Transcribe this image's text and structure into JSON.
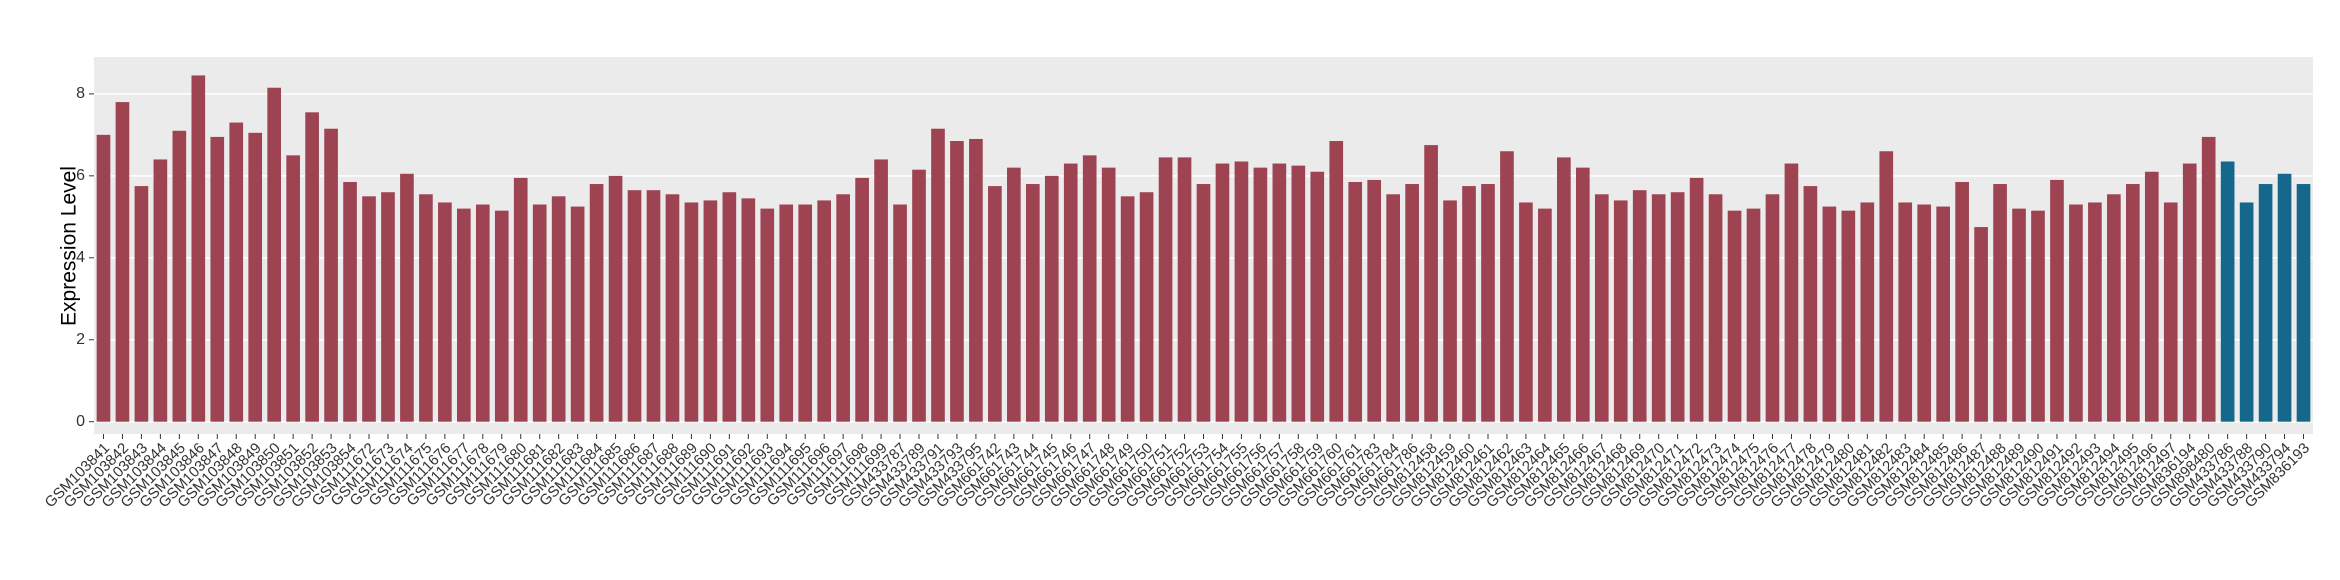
{
  "chart_data": {
    "type": "bar",
    "y_label": "Expression Level",
    "categories": [
      "GSM103841",
      "GSM103842",
      "GSM103843",
      "GSM103844",
      "GSM103845",
      "GSM103846",
      "GSM103847",
      "GSM103848",
      "GSM103849",
      "GSM103850",
      "GSM103851",
      "GSM103852",
      "GSM103853",
      "GSM103854",
      "GSM111672",
      "GSM111673",
      "GSM111674",
      "GSM111675",
      "GSM111676",
      "GSM111677",
      "GSM111678",
      "GSM111679",
      "GSM111680",
      "GSM111681",
      "GSM111682",
      "GSM111683",
      "GSM111684",
      "GSM111685",
      "GSM111686",
      "GSM111687",
      "GSM111688",
      "GSM111689",
      "GSM111690",
      "GSM111691",
      "GSM111692",
      "GSM111693",
      "GSM111694",
      "GSM111695",
      "GSM111696",
      "GSM111697",
      "GSM111698",
      "GSM111699",
      "GSM433787",
      "GSM433789",
      "GSM433791",
      "GSM433793",
      "GSM433795",
      "GSM661742",
      "GSM661743",
      "GSM661744",
      "GSM661745",
      "GSM661746",
      "GSM661747",
      "GSM661748",
      "GSM661749",
      "GSM661750",
      "GSM661751",
      "GSM661752",
      "GSM661753",
      "GSM661754",
      "GSM661755",
      "GSM661756",
      "GSM661757",
      "GSM661758",
      "GSM661759",
      "GSM661760",
      "GSM661761",
      "GSM661783",
      "GSM661784",
      "GSM661786",
      "GSM812458",
      "GSM812459",
      "GSM812460",
      "GSM812461",
      "GSM812462",
      "GSM812463",
      "GSM812464",
      "GSM812465",
      "GSM812466",
      "GSM812467",
      "GSM812468",
      "GSM812469",
      "GSM812470",
      "GSM812471",
      "GSM812472",
      "GSM812473",
      "GSM812474",
      "GSM812475",
      "GSM812476",
      "GSM812477",
      "GSM812478",
      "GSM812479",
      "GSM812480",
      "GSM812481",
      "GSM812482",
      "GSM812483",
      "GSM812484",
      "GSM812485",
      "GSM812486",
      "GSM812487",
      "GSM812488",
      "GSM812489",
      "GSM812490",
      "GSM812491",
      "GSM812492",
      "GSM812493",
      "GSM812494",
      "GSM812495",
      "GSM812496",
      "GSM812497",
      "GSM836194",
      "GSM898480",
      "GSM433786",
      "GSM433788",
      "GSM433790",
      "GSM433794",
      "GSM836193"
    ],
    "values": [
      7.0,
      7.8,
      5.75,
      6.4,
      7.1,
      8.45,
      6.95,
      7.3,
      7.05,
      8.15,
      6.5,
      7.55,
      7.15,
      5.85,
      5.5,
      5.6,
      6.05,
      5.55,
      5.35,
      5.2,
      5.3,
      5.15,
      5.95,
      5.3,
      5.5,
      5.25,
      5.8,
      6.0,
      5.65,
      5.65,
      5.55,
      5.35,
      5.4,
      5.6,
      5.45,
      5.2,
      5.3,
      5.3,
      5.4,
      5.55,
      5.95,
      6.4,
      5.3,
      6.15,
      7.15,
      6.85,
      6.9,
      5.75,
      6.2,
      5.8,
      6.0,
      6.3,
      6.5,
      6.2,
      5.5,
      5.6,
      6.45,
      6.45,
      5.8,
      6.3,
      6.35,
      6.2,
      6.3,
      6.25,
      6.1,
      6.85,
      5.85,
      5.9,
      5.55,
      5.8,
      6.75,
      5.4,
      5.75,
      5.8,
      6.6,
      5.35,
      5.2,
      6.45,
      6.2,
      5.55,
      5.4,
      5.65,
      5.55,
      5.6,
      5.95,
      5.55,
      5.15,
      5.2,
      5.55,
      6.3,
      5.75,
      5.25,
      5.15,
      5.35,
      6.6,
      5.35,
      5.3,
      5.25,
      5.85,
      4.75,
      5.8,
      5.2,
      5.15,
      5.9,
      5.3,
      5.35,
      5.55,
      5.8,
      6.1,
      5.35,
      6.3,
      6.95,
      6.35,
      5.35,
      5.8,
      6.05,
      5.8
    ],
    "colors": [
      "#9e4352",
      "#9e4352",
      "#9e4352",
      "#9e4352",
      "#9e4352",
      "#9e4352",
      "#9e4352",
      "#9e4352",
      "#9e4352",
      "#9e4352",
      "#9e4352",
      "#9e4352",
      "#9e4352",
      "#9e4352",
      "#9e4352",
      "#9e4352",
      "#9e4352",
      "#9e4352",
      "#9e4352",
      "#9e4352",
      "#9e4352",
      "#9e4352",
      "#9e4352",
      "#9e4352",
      "#9e4352",
      "#9e4352",
      "#9e4352",
      "#9e4352",
      "#9e4352",
      "#9e4352",
      "#9e4352",
      "#9e4352",
      "#9e4352",
      "#9e4352",
      "#9e4352",
      "#9e4352",
      "#9e4352",
      "#9e4352",
      "#9e4352",
      "#9e4352",
      "#9e4352",
      "#9e4352",
      "#9e4352",
      "#9e4352",
      "#9e4352",
      "#9e4352",
      "#9e4352",
      "#9e4352",
      "#9e4352",
      "#9e4352",
      "#9e4352",
      "#9e4352",
      "#9e4352",
      "#9e4352",
      "#9e4352",
      "#9e4352",
      "#9e4352",
      "#9e4352",
      "#9e4352",
      "#9e4352",
      "#9e4352",
      "#9e4352",
      "#9e4352",
      "#9e4352",
      "#9e4352",
      "#9e4352",
      "#9e4352",
      "#9e4352",
      "#9e4352",
      "#9e4352",
      "#9e4352",
      "#9e4352",
      "#9e4352",
      "#9e4352",
      "#9e4352",
      "#9e4352",
      "#9e4352",
      "#9e4352",
      "#9e4352",
      "#9e4352",
      "#9e4352",
      "#9e4352",
      "#9e4352",
      "#9e4352",
      "#9e4352",
      "#9e4352",
      "#9e4352",
      "#9e4352",
      "#9e4352",
      "#9e4352",
      "#9e4352",
      "#9e4352",
      "#9e4352",
      "#9e4352",
      "#9e4352",
      "#9e4352",
      "#9e4352",
      "#9e4352",
      "#9e4352",
      "#9e4352",
      "#9e4352",
      "#9e4352",
      "#9e4352",
      "#9e4352",
      "#9e4352",
      "#9e4352",
      "#9e4352",
      "#9e4352",
      "#9e4352",
      "#9e4352",
      "#9e4352",
      "#9e4352",
      "#15688c",
      "#15688c",
      "#15688c",
      "#15688c",
      "#15688c"
    ],
    "ylim": [
      -0.3,
      8.9
    ],
    "yticks": [
      0,
      2,
      4,
      6,
      8
    ],
    "grid": true
  }
}
